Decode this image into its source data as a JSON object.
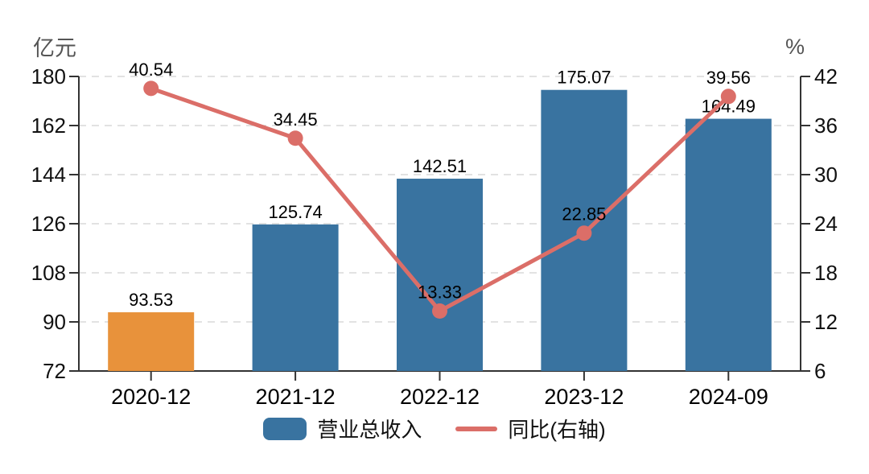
{
  "chart_data": {
    "type": "combo-bar-line",
    "title": "",
    "categories": [
      "2020-12",
      "2021-12",
      "2022-12",
      "2023-12",
      "2024-09"
    ],
    "series": [
      {
        "name": "营业总收入",
        "type": "bar",
        "axis": "left",
        "values": [
          93.53,
          125.74,
          142.51,
          175.07,
          164.49
        ],
        "color": "#3973A0",
        "point_colors": [
          "#E8923B",
          "#3973A0",
          "#3973A0",
          "#3973A0",
          "#3973A0"
        ]
      },
      {
        "name": "同比(右轴)",
        "type": "line",
        "axis": "right",
        "values": [
          40.54,
          34.45,
          13.33,
          22.85,
          39.56
        ],
        "color": "#DB6E68"
      }
    ],
    "left_axis": {
      "unit": "亿元",
      "min": 72,
      "max": 180,
      "ticks": [
        72,
        90,
        108,
        126,
        144,
        162,
        180
      ]
    },
    "right_axis": {
      "unit": "%",
      "min": 6,
      "max": 42,
      "ticks": [
        6,
        12,
        18,
        24,
        30,
        36,
        42
      ]
    },
    "grid": {
      "show": true,
      "style": "dashed",
      "color": "#D9D9D9"
    },
    "legend": {
      "position": "bottom",
      "items": [
        "营业总收入",
        "同比(右轴)"
      ]
    },
    "axis_color": "#333333",
    "tick_label_color": "#111111",
    "data_label_color": "#000000",
    "unit_label_color": "#555555"
  }
}
